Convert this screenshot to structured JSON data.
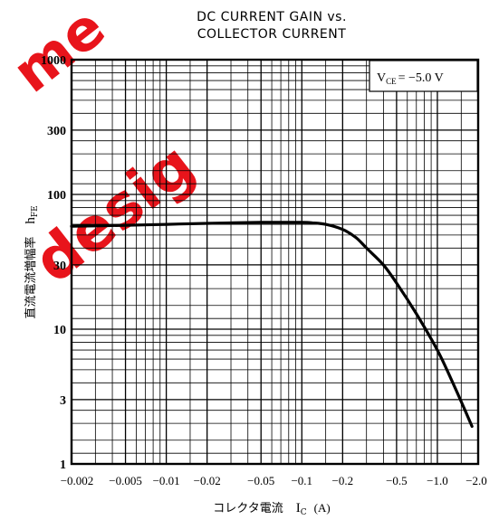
{
  "chart_data": {
    "type": "line",
    "title_lines": [
      "DC CURRENT GAIN vs.",
      "COLLECTOR CURRENT"
    ],
    "xlabel_prefix": "コレクタ電流",
    "xlabel_symbol": "I",
    "xlabel_sub": "C",
    "xlabel_unit": "(A)",
    "ylabel_text": "直流電流増幅率",
    "ylabel_symbol": "h",
    "ylabel_sub": "FE",
    "annotation": {
      "symbol": "V",
      "sub": "CE",
      "value": "= −5.0 V"
    },
    "x_scale": "log",
    "y_scale": "log",
    "xlim": [
      0.002,
      2.0
    ],
    "ylim": [
      1,
      1000
    ],
    "x_tick_values": [
      0.002,
      0.005,
      0.01,
      0.02,
      0.05,
      0.1,
      0.2,
      0.5,
      1.0,
      2.0
    ],
    "x_tick_labels": [
      "−0.002",
      "−0.005",
      "−0.01",
      "−0.02",
      "−0.05",
      "−0.1",
      "−0.2",
      "−0.5",
      "−1.0",
      "−2.0"
    ],
    "y_tick_values": [
      1,
      3,
      10,
      30,
      100,
      300,
      1000
    ],
    "y_tick_labels": [
      "1",
      "3",
      "10",
      "30",
      "100",
      "300",
      "1000"
    ],
    "grid": true,
    "series": [
      {
        "x": [
          0.002,
          0.005,
          0.01,
          0.02,
          0.05,
          0.1,
          0.12,
          0.15,
          0.2,
          0.25,
          0.3,
          0.4,
          0.5,
          0.7,
          1.0,
          1.3,
          1.6,
          1.8
        ],
        "y": [
          58,
          59,
          60,
          61,
          62,
          62,
          61.5,
          60,
          55,
          48,
          40,
          30,
          22,
          13,
          7,
          4,
          2.5,
          1.9
        ]
      }
    ]
  },
  "watermark": {
    "line1": "me",
    "line2": "desig",
    "color": "#e8141b"
  }
}
